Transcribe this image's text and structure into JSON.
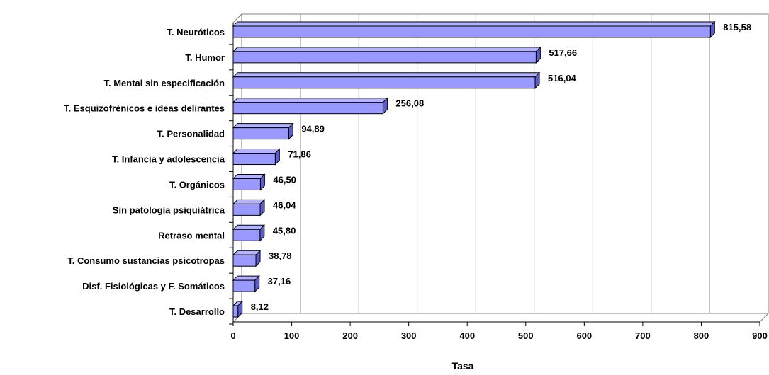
{
  "chart_data": {
    "type": "bar",
    "orientation": "horizontal",
    "style": "3d",
    "xlabel": "Tasa",
    "xlim": [
      0,
      900
    ],
    "xticks": [
      0,
      100,
      200,
      300,
      400,
      500,
      600,
      700,
      800,
      900
    ],
    "grid": true,
    "legend": "none",
    "colors": {
      "bar_front": "#9999ff",
      "bar_top": "#b3b3ff",
      "bar_side": "#5c5ccc",
      "outline": "#000000",
      "gridline": "#c0c0c0"
    },
    "categories": [
      "T. Neuróticos",
      "T. Humor",
      "T. Mental sin especificación",
      "T. Esquizofrénicos e ideas delirantes",
      "T. Personalidad",
      "T. Infancia y adolescencia",
      "T. Orgánicos",
      "Sin patología psiquiátrica",
      "Retraso mental",
      "T. Consumo sustancias psicotropas",
      "Disf. Fisiológicas y F. Somáticos",
      "T. Desarrollo"
    ],
    "values": [
      815.58,
      517.66,
      516.04,
      256.08,
      94.89,
      71.86,
      46.5,
      46.04,
      45.8,
      38.78,
      37.16,
      8.12
    ],
    "value_labels": [
      "815,58",
      "517,66",
      "516,04",
      "256,08",
      "94,89",
      "71,86",
      "46,50",
      "46,04",
      "45,80",
      "38,78",
      "37,16",
      "8,12"
    ]
  }
}
